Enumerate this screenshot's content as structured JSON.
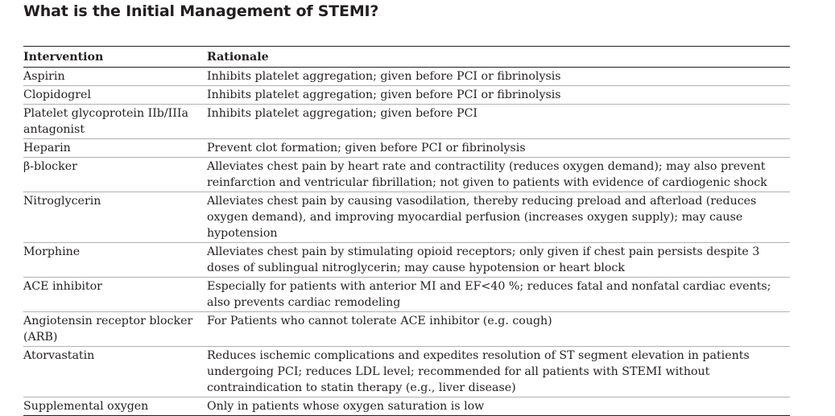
{
  "title": "What is the Initial Management of STEMI?",
  "table": {
    "headers": {
      "intervention": "Intervention",
      "rationale": "Rationale"
    },
    "rows": [
      {
        "intervention": "Aspirin",
        "rationale": "Inhibits platelet aggregation; given before PCI or fibrinolysis"
      },
      {
        "intervention": "Clopidogrel",
        "rationale": "Inhibits platelet aggregation; given before PCI or fibrinolysis"
      },
      {
        "intervention": "Platelet glycoprotein IIb/IIIa antagonist",
        "rationale": "Inhibits platelet aggregation; given before PCI"
      },
      {
        "intervention": "Heparin",
        "rationale": "Prevent clot formation; given before PCI or fibrinolysis"
      },
      {
        "intervention": "β-blocker",
        "rationale": "Alleviates chest pain by heart rate and contractility (reduces oxygen demand); may also prevent reinfarction and ventricular fibrillation; not given to patients with evidence of cardiogenic shock"
      },
      {
        "intervention": "Nitroglycerin",
        "rationale": "Alleviates chest pain by causing vasodilation, thereby reducing preload and afterload (reduces oxygen demand), and improving myocardial perfusion (increases oxygen supply); may cause hypotension"
      },
      {
        "intervention": "Morphine",
        "rationale": "Alleviates chest pain by stimulating opioid receptors; only given if chest pain persists despite 3 doses of sublingual nitroglycerin; may cause hypotension or heart block"
      },
      {
        "intervention": "ACE inhibitor",
        "rationale": "Especially for patients with anterior MI and EF<40 %; reduces fatal and nonfatal cardiac events; also prevents cardiac remodeling"
      },
      {
        "intervention": "Angiotensin receptor blocker (ARB)",
        "rationale": "For Patients who cannot tolerate ACE inhibitor (e.g. cough)"
      },
      {
        "intervention": "Atorvastatin",
        "rationale": "Reduces ischemic complications and expedites resolution of ST segment elevation in patients undergoing PCI; reduces LDL level; recommended for all patients with STEMI without contraindication to statin therapy (e.g., liver disease)"
      },
      {
        "intervention": "Supplemental oxygen",
        "rationale": "Only in patients whose oxygen saturation is low"
      }
    ]
  }
}
